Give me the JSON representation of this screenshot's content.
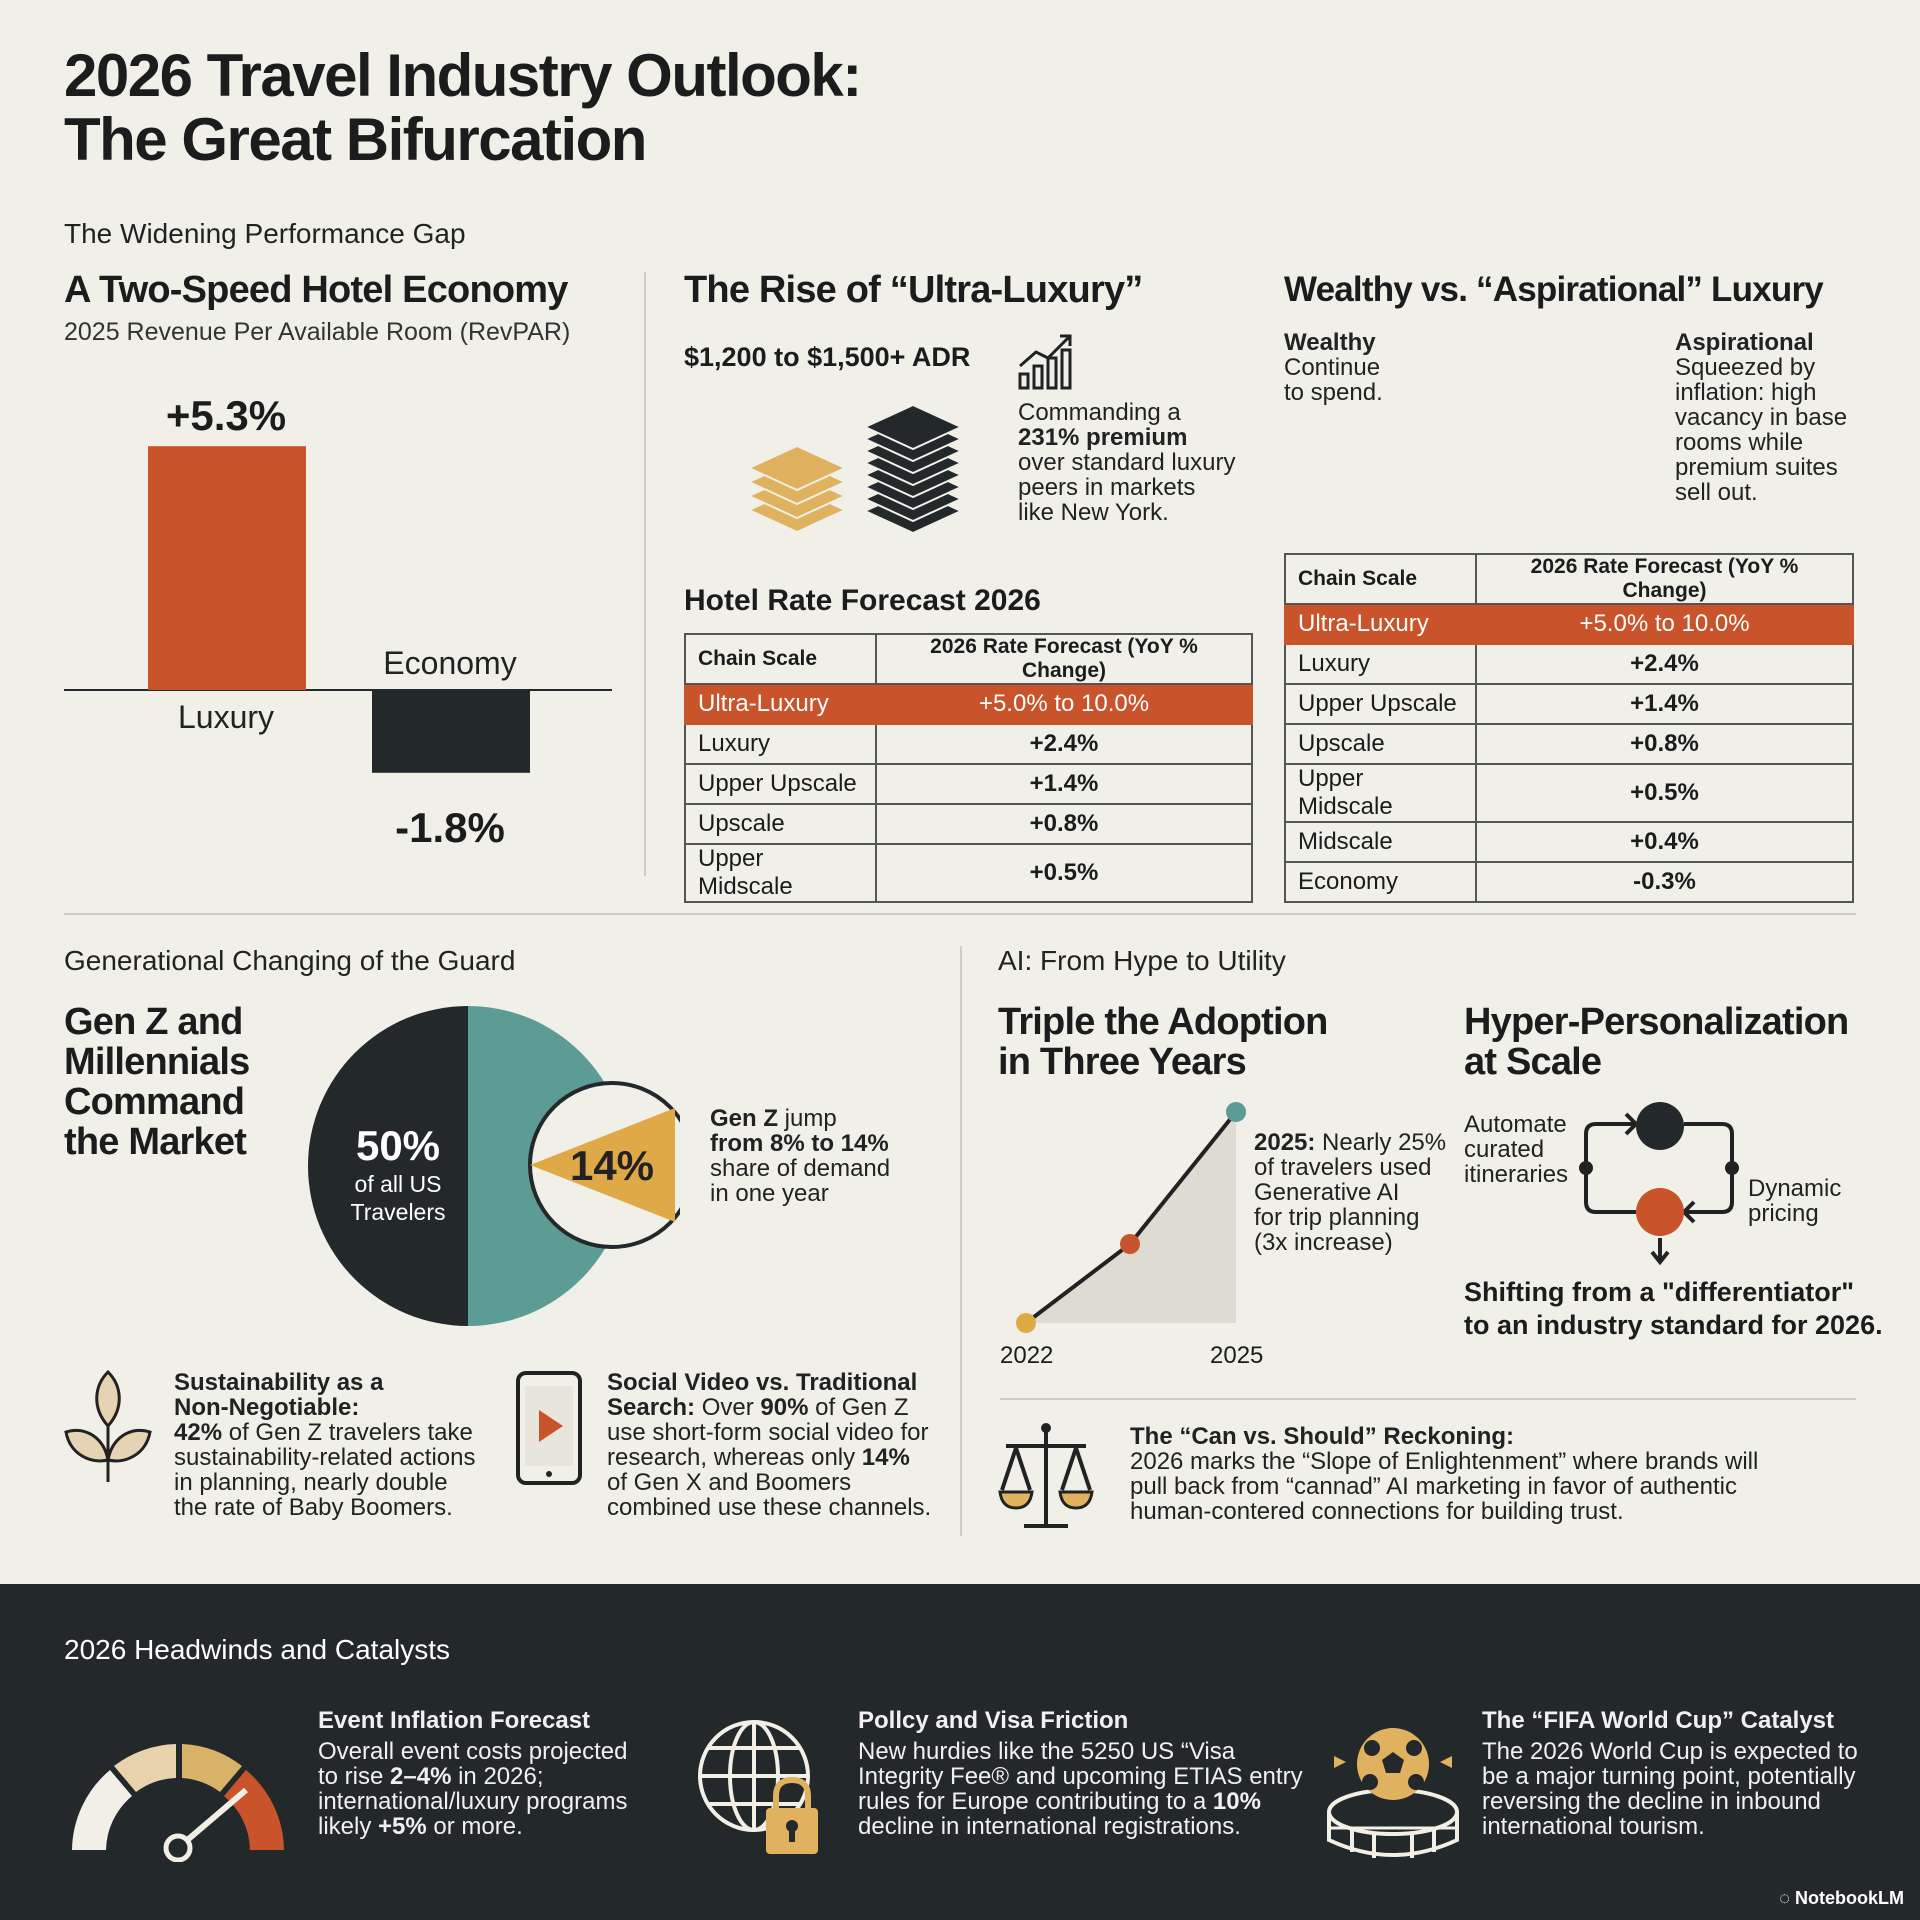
{
  "title_line1": "2026 Travel Industry Outlook:",
  "title_line2": "The Great Bifurcation",
  "gap_section": "The Widening Performance Gap",
  "hotel_economy": {
    "heading": "A Two-Speed Hotel Economy",
    "subtitle": "2025 Revenue Per Available Room (RevPAR)"
  },
  "chart_data": {
    "type": "bar",
    "categories": [
      "Luxury",
      "Economy"
    ],
    "values": [
      5.3,
      -1.8
    ],
    "value_labels": [
      "+5.3%",
      "-1.8%"
    ],
    "colors": [
      "#c9532b",
      "#23282b"
    ],
    "title": "2025 Revenue Per Available Room (RevPAR)"
  },
  "ultra": {
    "heading": "The Rise of “Ultra-Luxury”",
    "adr": "$1,200 to $1,500+ ADR",
    "text_a": "Commanding a",
    "text_bold": "231% premium",
    "text_b": "over standard luxury",
    "text_c": "peers in markets",
    "text_d": "like New York."
  },
  "wealthy": {
    "heading": "Wealthy vs. “Aspirational” Luxury",
    "wealthy_title": "Wealthy",
    "wealthy_text_1": "Continue",
    "wealthy_text_2": "to spend.",
    "asp_title": "Aspirational",
    "asp_1": "Squeezed by",
    "asp_2": "inflation: high",
    "asp_3": "vacancy in base",
    "asp_4": "rooms while",
    "asp_5": "premium suites",
    "asp_6": "sell out."
  },
  "forecast_title": "Hotel Rate Forecast 2026",
  "table_left": {
    "headers": [
      "Chain Scale",
      "2026 Rate Forecast (YoY % Change)"
    ],
    "rows": [
      [
        "Ultra-Luxury",
        "+5.0% to 10.0%"
      ],
      [
        "Luxury",
        "+2.4%"
      ],
      [
        "Upper Upscale",
        "+1.4%"
      ],
      [
        "Upscale",
        "+0.8%"
      ],
      [
        "Upper Midscale",
        "+0.5%"
      ]
    ]
  },
  "table_right": {
    "headers": [
      "Chain Scale",
      "2026 Rate Forecast (YoY % Change)"
    ],
    "rows": [
      [
        "Ultra-Luxury",
        "+5.0% to 10.0%"
      ],
      [
        "Luxury",
        "+2.4%"
      ],
      [
        "Upper Upscale",
        "+1.4%"
      ],
      [
        "Upscale",
        "+0.8%"
      ],
      [
        "Upper Midscale",
        "+0.5%"
      ],
      [
        "Midscale",
        "+0.4%"
      ],
      [
        "Economy",
        "-0.3%"
      ]
    ]
  },
  "gen": {
    "section": "Generational Changing of the Guard",
    "h1": "Gen Z and",
    "h2": "Millennials",
    "h3": "Command",
    "h4": "the Market",
    "pie_pct": "50%",
    "pie_l1": "of all US",
    "pie_l2": "Travelers",
    "inner_pct": "14%",
    "jump_bold": "Gen Z",
    "jump_1": " jump",
    "jump_2_bold": "from 8% to 14%",
    "jump_3": "share of demand",
    "jump_4": "in one year"
  },
  "sustain": {
    "t1": "Sustainability as a",
    "t2": "Non-Negotiable:",
    "b1_bold": "42%",
    "b1": " of Gen Z travelers take",
    "b2": "sustainability-related actions",
    "b3": "in planning, nearly double",
    "b4": "the rate of Baby Boomers."
  },
  "social": {
    "t1": "Social Video vs. Traditional",
    "t2": "Search:",
    "b1": " Over ",
    "b1_bold": "90%",
    "b1b": " of Gen Z",
    "b2": "use short-form social video for",
    "b3": "research, whereas only ",
    "b3_bold": "14%",
    "b4": "of Gen X and Boomers",
    "b5": "combined use these channels."
  },
  "ai": {
    "section": "AI: From Hype to Utility",
    "triple_1": "Triple the Adoption",
    "triple_2": "in Three Years",
    "note_bold": "2025:",
    "note_1": " Nearly 25%",
    "note_2": "of travelers used",
    "note_3": "Generative AI",
    "note_4": "for trip planning",
    "note_5": "(3x increase)",
    "x_start": "2022",
    "x_end": "2025",
    "hyper_1": "Hyper-Personalization",
    "hyper_2": "at Scale",
    "auto_1": "Automate",
    "auto_2": "curated",
    "auto_3": "itineraries",
    "dyn_1": "Dynamic",
    "dyn_2": "pricing",
    "shift_1": "Shifting from a \"differentiator\"",
    "shift_2": "to an industry standard for 2026.",
    "can_title": "The “Can vs. Should” Reckoning:",
    "can_1": "2026 marks the “Slope of Enlightenment” where brands will",
    "can_2": "pull back from “cannad” AI marketing in favor of authentic",
    "can_3": "human-contered connections for building trust."
  },
  "headwinds": {
    "section": "2026 Headwinds and Catalysts",
    "event_title": "Event Inflation Forecast",
    "event_1": "Overall event costs projected",
    "event_2a": "to rise ",
    "event_2b": "2–4%",
    "event_2c": " in 2026;",
    "event_3": "international/luxury programs",
    "event_4a": "likely ",
    "event_4b": "+5%",
    "event_4c": " or more.",
    "policy_title": "Pollcy and Visa Friction",
    "policy_1": "New hurdies like the 5250 US “Visa",
    "policy_2": "Integrity Fee® and upcoming ETIAS entry",
    "policy_3a": "rules for Europe contributing to a ",
    "policy_3b": "10%",
    "policy_4": "decline in international registrations.",
    "fifa_title": "The “FIFA World Cup” Catalyst",
    "fifa_1": "The 2026 World Cup is expected to",
    "fifa_2": "be a major turning point, potentially",
    "fifa_3": "reversing the decline in inbound",
    "fifa_4": "international tourism."
  },
  "brand": "NotebookLM"
}
